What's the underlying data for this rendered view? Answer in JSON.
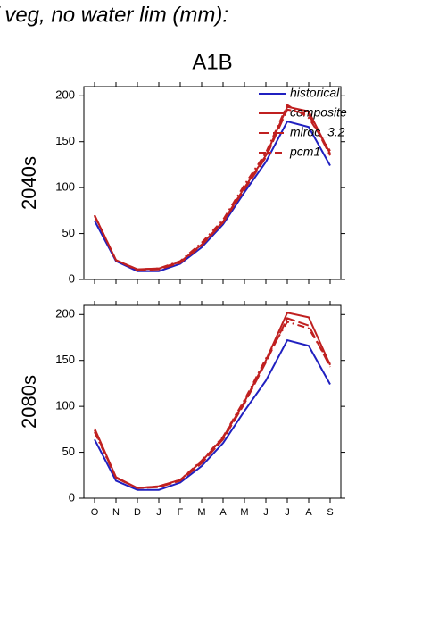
{
  "title": "f veg, no water lim (mm):",
  "chart_data": [
    {
      "type": "line",
      "title": "A1B",
      "ylabel": "2040s",
      "ylim": [
        0,
        210
      ],
      "yticks": [
        0,
        50,
        100,
        150,
        200
      ],
      "series": [
        {
          "name": "historical",
          "color": "#2020c0",
          "dash": "solid",
          "values": [
            64,
            20,
            9,
            9,
            17,
            35,
            60,
            95,
            128,
            172,
            166,
            124
          ]
        },
        {
          "name": "composite",
          "color": "#c02020",
          "dash": "solid",
          "values": [
            70,
            21,
            11,
            12,
            19,
            38,
            63,
            100,
            135,
            188,
            183,
            137
          ]
        },
        {
          "name": "miroc_3.2",
          "color": "#c02020",
          "dash": "long-dash",
          "values": [
            70,
            21,
            10,
            11,
            18,
            37,
            62,
            98,
            133,
            185,
            180,
            135
          ]
        },
        {
          "name": "pcm1",
          "color": "#c02020",
          "dash": "dash-dot",
          "values": [
            69,
            21,
            11,
            12,
            20,
            40,
            65,
            103,
            138,
            190,
            176,
            140
          ]
        }
      ]
    },
    {
      "type": "line",
      "ylabel": "2080s",
      "categories": [
        "O",
        "N",
        "D",
        "J",
        "F",
        "M",
        "A",
        "M",
        "J",
        "J",
        "A",
        "S"
      ],
      "ylim": [
        0,
        210
      ],
      "yticks": [
        0,
        50,
        100,
        150,
        200
      ],
      "series": [
        {
          "color": "#2020c0",
          "dash": "solid",
          "values": [
            64,
            19,
            9,
            9,
            17,
            35,
            60,
            95,
            128,
            172,
            166,
            124
          ]
        },
        {
          "color": "#c02020",
          "dash": "solid",
          "values": [
            76,
            23,
            11,
            13,
            20,
            40,
            66,
            105,
            150,
            202,
            197,
            145
          ]
        },
        {
          "color": "#c02020",
          "dash": "long-dash",
          "values": [
            74,
            22,
            11,
            12,
            19,
            38,
            64,
            103,
            148,
            196,
            188,
            143
          ]
        },
        {
          "color": "#c02020",
          "dash": "dash-dot",
          "values": [
            72,
            22,
            11,
            13,
            20,
            41,
            67,
            107,
            152,
            192,
            185,
            146
          ]
        }
      ]
    }
  ]
}
